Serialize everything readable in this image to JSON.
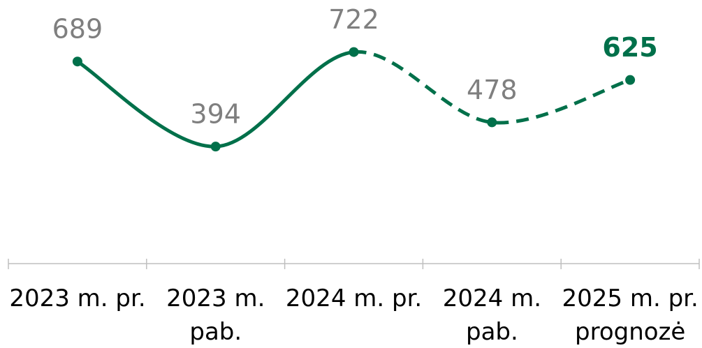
{
  "chart_data": {
    "type": "line",
    "categories": [
      "2023 m. pr.",
      "2023 m. pab.",
      "2024 m. pr.",
      "2024 m. pab.",
      "2025 m. pr. prognozė"
    ],
    "series": [
      {
        "color": "#00704a",
        "values": [
          689,
          394,
          722,
          478,
          625
        ]
      }
    ],
    "ylim": [
      0,
      900
    ],
    "dashed_from": 2,
    "highlight": 4
  }
}
